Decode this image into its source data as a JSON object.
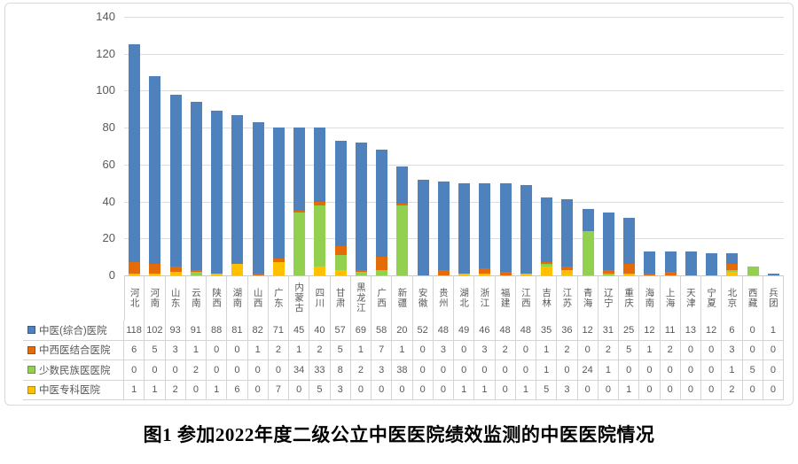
{
  "figure": {
    "caption": "图1 参加2022年度二级公立中医医院绩效监测的中医医院情况"
  },
  "chart_data": {
    "type": "bar",
    "stacked": true,
    "title": "",
    "xlabel": "",
    "ylabel": "",
    "ylim": [
      0,
      140
    ],
    "yticks": [
      0,
      20,
      40,
      60,
      80,
      100,
      120,
      140
    ],
    "grid": true,
    "legend_position": "table-rows-left",
    "categories": [
      "河北",
      "河南",
      "山东",
      "云南",
      "陕西",
      "湖南",
      "山西",
      "广东",
      "内蒙古",
      "四川",
      "甘肃",
      "黑龙江",
      "广西",
      "新疆",
      "安徽",
      "贵州",
      "湖北",
      "浙江",
      "福建",
      "江西",
      "吉林",
      "江苏",
      "青海",
      "辽宁",
      "重庆",
      "海南",
      "上海",
      "天津",
      "宁夏",
      "北京",
      "西藏",
      "兵团"
    ],
    "series": [
      {
        "name": "中医(综合)医院",
        "color": "#4f81bd",
        "values": [
          118,
          102,
          93,
          91,
          88,
          81,
          82,
          71,
          45,
          40,
          57,
          69,
          58,
          20,
          52,
          48,
          49,
          46,
          48,
          48,
          35,
          36,
          12,
          31,
          25,
          12,
          11,
          13,
          12,
          6,
          0,
          1
        ]
      },
      {
        "name": "中西医结合医院",
        "color": "#e36c09",
        "values": [
          6,
          5,
          3,
          1,
          0,
          0,
          1,
          2,
          1,
          2,
          5,
          1,
          7,
          1,
          0,
          3,
          0,
          3,
          2,
          0,
          1,
          2,
          0,
          2,
          5,
          1,
          2,
          0,
          0,
          3,
          0,
          0
        ]
      },
      {
        "name": "少数民族医医院",
        "color": "#92d050",
        "values": [
          0,
          0,
          0,
          2,
          0,
          0,
          0,
          0,
          34,
          33,
          8,
          2,
          3,
          38,
          0,
          0,
          0,
          0,
          0,
          0,
          1,
          0,
          24,
          1,
          0,
          0,
          0,
          0,
          0,
          1,
          5,
          0
        ]
      },
      {
        "name": "中医专科医院",
        "color": "#ffc000",
        "values": [
          1,
          1,
          2,
          0,
          1,
          6,
          0,
          7,
          0,
          5,
          3,
          0,
          0,
          0,
          0,
          0,
          1,
          1,
          0,
          1,
          5,
          3,
          0,
          0,
          1,
          0,
          0,
          0,
          0,
          2,
          0,
          0
        ]
      }
    ],
    "stack_order_bottom_to_top": [
      3,
      2,
      1,
      0
    ]
  },
  "colors": {
    "grid": "#dcdcdc",
    "axis_line": "#c6c6c6",
    "axis_text": "#595959",
    "table_border": "#d4d4d4",
    "table_text": "#595959",
    "frame_border": "#d9d9d9",
    "background": "#ffffff",
    "caption_text": "#000000"
  }
}
